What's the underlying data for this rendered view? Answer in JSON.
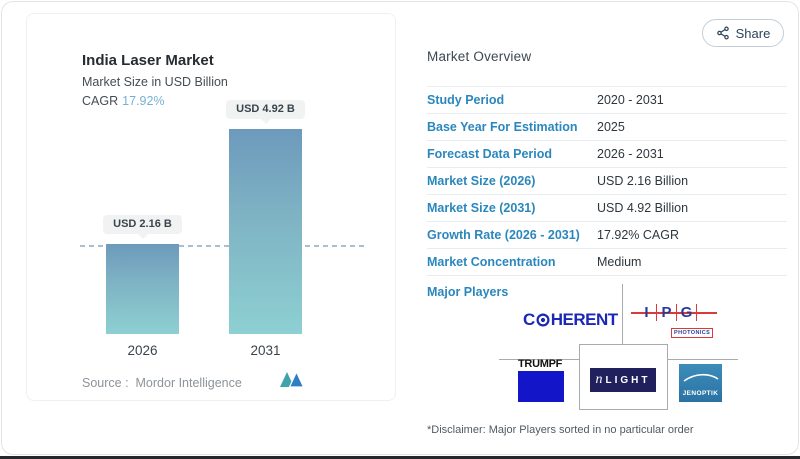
{
  "share": {
    "label": "Share"
  },
  "chart": {
    "title": "India Laser Market",
    "subtitle": "Market Size in USD Billion",
    "cagr_label": "CAGR",
    "cagr_value": "17.92%",
    "bars": [
      {
        "year": "2026",
        "badge": "USD 2.16 B"
      },
      {
        "year": "2031",
        "badge": "USD 4.92 B"
      }
    ],
    "source_label": "Source :",
    "source_value": "Mordor Intelligence"
  },
  "chart_data": {
    "type": "bar",
    "categories": [
      "2026",
      "2031"
    ],
    "values": [
      2.16,
      4.92
    ],
    "unit": "USD Billion",
    "title": "India Laser Market",
    "subtitle": "Market Size in USD Billion",
    "cagr_percent": 17.92,
    "data_labels": [
      "USD 2.16 B",
      "USD 4.92 B"
    ],
    "ylim": [
      0,
      5.2
    ],
    "grid": false,
    "reference_line_y": 2.16,
    "legend": false,
    "source": "Mordor Intelligence"
  },
  "overview": {
    "title": "Market Overview",
    "rows": [
      {
        "label": "Study Period",
        "value": "2020 - 2031"
      },
      {
        "label": "Base Year For Estimation",
        "value": "2025"
      },
      {
        "label": "Forecast Data Period",
        "value": "2026 - 2031"
      },
      {
        "label": "Market Size (2026)",
        "value": "USD 2.16 Billion"
      },
      {
        "label": "Market Size (2031)",
        "value": "USD 4.92 Billion"
      },
      {
        "label": "Growth Rate (2026 - 2031)",
        "value": "17.92% CAGR"
      },
      {
        "label": "Market Concentration",
        "value": "Medium"
      }
    ],
    "major_players_label": "Major Players",
    "players": {
      "names": [
        "Coherent",
        "IPG Photonics",
        "TRUMPF",
        "nLIGHT",
        "Jenoptik"
      ],
      "coherent": {
        "left": "C",
        "right": "HERENT"
      },
      "ipg": {
        "l1": "I",
        "l2": "P",
        "l3": "G",
        "sub": "PHOTONICS"
      },
      "trumpf": {
        "text": "TRUMPF"
      },
      "nlight": {
        "n": "n",
        "rest": "LIGHT"
      },
      "jenoptik": {
        "text": "JENOPTIK"
      }
    },
    "disclaimer": "*Disclaimer: Major Players sorted in no particular order"
  },
  "icons": {
    "share": "share-nodes-icon",
    "mordor": "mordor-intelligence-logo"
  },
  "colors": {
    "label_blue": "#2a87be",
    "cagr_blue": "#76b1d4",
    "bar_gradient_top": "#6d9abc",
    "bar_gradient_bottom": "#8dd0d2",
    "dashed_line": "#a9bece",
    "coherent_blue": "#1b27b5",
    "ipg_blue": "#2b3a96",
    "ipg_red": "#d93a3c",
    "trumpf_blue": "#1216c8",
    "nlight_navy": "#20215c",
    "jenoptik_blue": "#2e7cab",
    "bottom_strip": "#24272b"
  }
}
